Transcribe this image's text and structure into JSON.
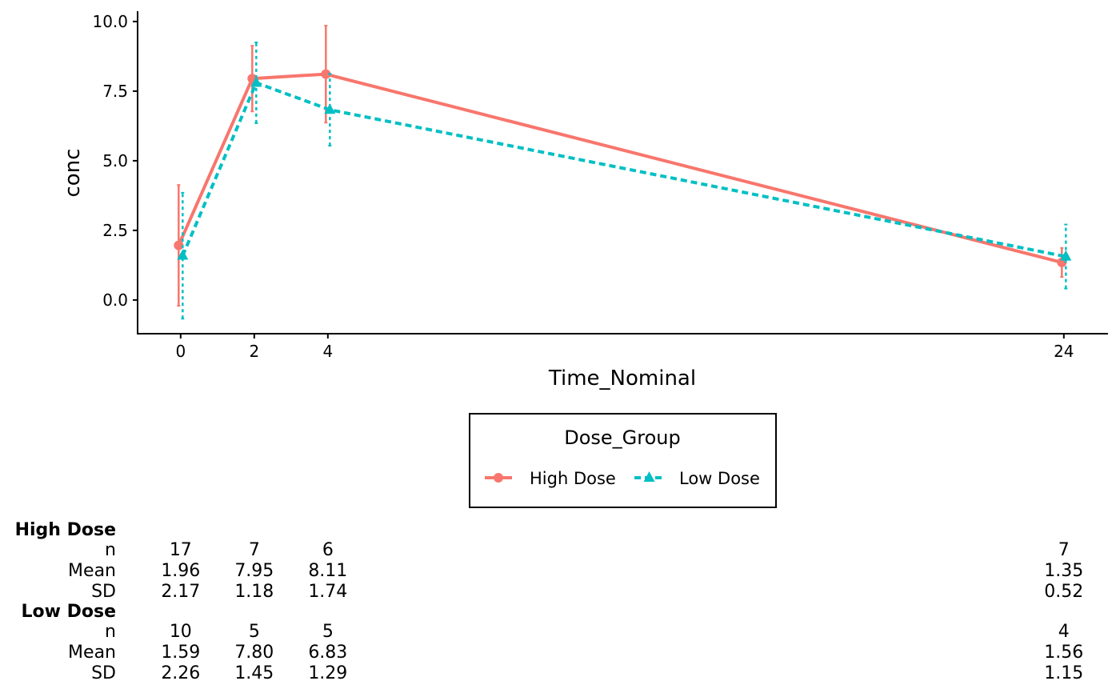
{
  "chart_data": {
    "type": "line",
    "xlabel": "Time_Nominal",
    "ylabel": "conc",
    "xlim": [
      -1.17,
      25.2
    ],
    "ylim": [
      -1.21,
      10.37
    ],
    "x_ticks": [
      0,
      2,
      4,
      24
    ],
    "x_tick_labels": [
      "0",
      "2",
      "4",
      "24"
    ],
    "y_ticks": [
      0,
      2.5,
      5,
      7.5,
      10
    ],
    "y_tick_labels": [
      "0.0",
      "2.5",
      "5.0",
      "7.5",
      "10.0"
    ],
    "grid": false,
    "legend": {
      "title": "Dose_Group",
      "placement": "bottom",
      "entries": [
        "High Dose",
        "Low Dose"
      ]
    },
    "series": [
      {
        "name": "High Dose",
        "color": "#F8766D",
        "line": "solid",
        "marker": "circle",
        "x": [
          0,
          2,
          4,
          24
        ],
        "mean": [
          1.96,
          7.95,
          8.11,
          1.35
        ],
        "sd": [
          2.17,
          1.18,
          1.74,
          0.52
        ],
        "n": [
          17,
          7,
          6,
          7
        ]
      },
      {
        "name": "Low Dose",
        "color": "#00BFC4",
        "line": "dashed",
        "marker": "triangle",
        "x": [
          0,
          2,
          4,
          24
        ],
        "mean": [
          1.59,
          7.8,
          6.83,
          1.56
        ],
        "sd": [
          2.26,
          1.45,
          1.29,
          1.15
        ],
        "n": [
          10,
          5,
          5,
          4
        ]
      }
    ],
    "table": {
      "row_labels": [
        "n",
        "Mean",
        "SD"
      ],
      "groups": [
        {
          "title": "High Dose",
          "n": [
            "17",
            "7",
            "6",
            "7"
          ],
          "Mean": [
            "1.96",
            "7.95",
            "8.11",
            "1.35"
          ],
          "SD": [
            "2.17",
            "1.18",
            "1.74",
            "0.52"
          ]
        },
        {
          "title": "Low Dose",
          "n": [
            "10",
            "5",
            "5",
            "4"
          ],
          "Mean": [
            "1.59",
            "7.80",
            "6.83",
            "1.56"
          ],
          "SD": [
            "2.26",
            "1.45",
            "1.29",
            "1.15"
          ]
        }
      ]
    }
  }
}
